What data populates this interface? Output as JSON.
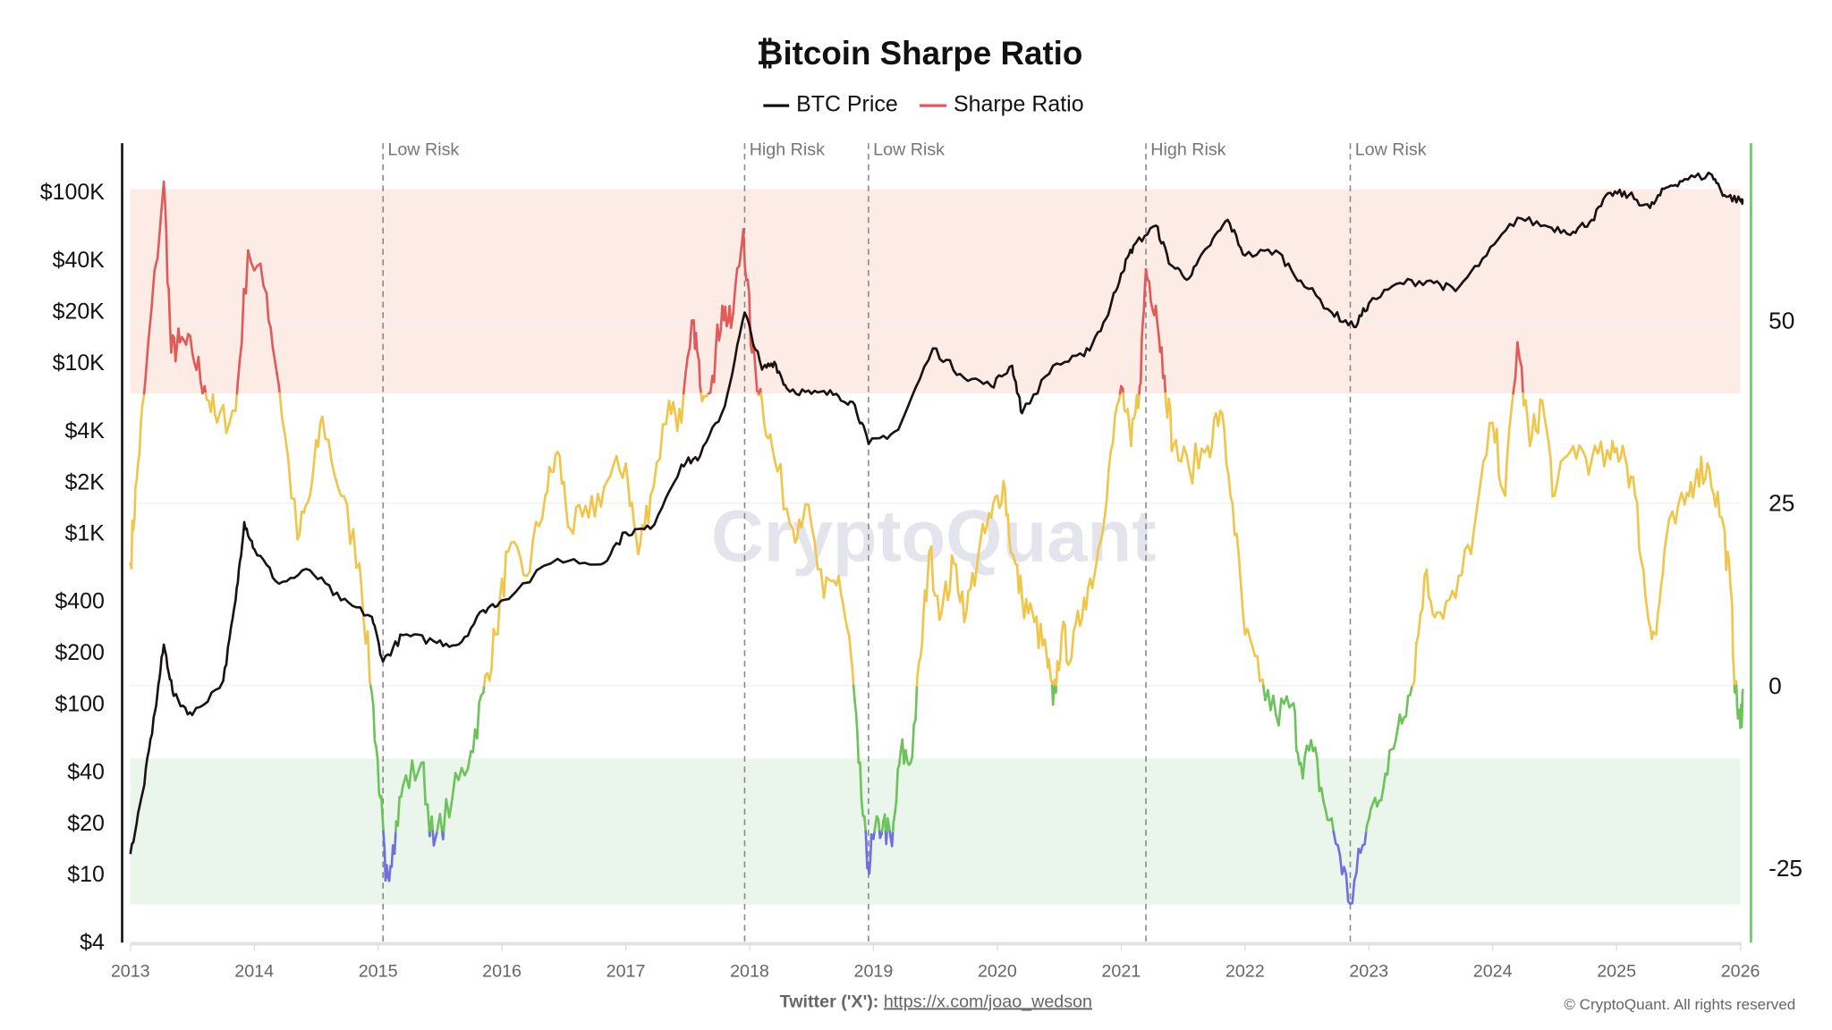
{
  "chart_data": {
    "type": "line",
    "title": "₿itcoin Sharpe Ratio",
    "legend": {
      "placement": "top-center",
      "entries": [
        {
          "name": "BTC Price",
          "color": "#111111"
        },
        {
          "name": "Sharpe Ratio",
          "color": "#e05a5a"
        }
      ]
    },
    "x_axis": {
      "ticks": [
        "2013",
        "2014",
        "2015",
        "2016",
        "2017",
        "2018",
        "2019",
        "2020",
        "2021",
        "2022",
        "2023",
        "2024",
        "2025",
        "2026"
      ],
      "range": [
        2013,
        2026
      ]
    },
    "y_left": {
      "scale": "log",
      "ticks": [
        {
          "label": "$100K",
          "value": 100000
        },
        {
          "label": "$40K",
          "value": 40000
        },
        {
          "label": "$20K",
          "value": 20000
        },
        {
          "label": "$10K",
          "value": 10000
        },
        {
          "label": "$4K",
          "value": 4000
        },
        {
          "label": "$2K",
          "value": 2000
        },
        {
          "label": "$1K",
          "value": 1000
        },
        {
          "label": "$400",
          "value": 400
        },
        {
          "label": "$200",
          "value": 200
        },
        {
          "label": "$100",
          "value": 100
        },
        {
          "label": "$40",
          "value": 40
        },
        {
          "label": "$20",
          "value": 20
        },
        {
          "label": "$10",
          "value": 10
        },
        {
          "label": "$4",
          "value": 4
        }
      ],
      "range": [
        4,
        100000
      ]
    },
    "y_right": {
      "scale": "linear",
      "ticks": [
        "50",
        "25",
        "0",
        "-25"
      ],
      "range": [
        -35,
        75
      ],
      "axis_color": "#6cc36a"
    },
    "bands": [
      {
        "from": 40,
        "to": 68,
        "color": "#fdebe6",
        "meaning": "high"
      },
      {
        "from": -30,
        "to": -10,
        "color": "#eaf5ec",
        "meaning": "low"
      }
    ],
    "sharpe_colors": [
      {
        "above": 40,
        "color": "#e05a5a"
      },
      {
        "above": 0,
        "color": "#f0c64a"
      },
      {
        "above": -20,
        "color": "#6cc35a"
      },
      {
        "above": -999,
        "color": "#6f6fe0"
      }
    ],
    "annotations": [
      {
        "x": 2015.04,
        "label": "Low Risk"
      },
      {
        "x": 2017.96,
        "label": "High Risk"
      },
      {
        "x": 2018.96,
        "label": "Low Risk"
      },
      {
        "x": 2021.2,
        "label": "High Risk"
      },
      {
        "x": 2022.85,
        "label": "Low Risk"
      }
    ],
    "series": [
      {
        "name": "BTC Price",
        "axis": "left",
        "x": [
          2013.0,
          2013.1,
          2013.2,
          2013.27,
          2013.35,
          2013.5,
          2013.75,
          2013.85,
          2013.92,
          2014.0,
          2014.2,
          2014.45,
          2014.7,
          2014.95,
          2015.04,
          2015.2,
          2015.45,
          2015.65,
          2015.85,
          2016.0,
          2016.45,
          2016.8,
          2017.0,
          2017.2,
          2017.45,
          2017.6,
          2017.8,
          2017.96,
          2018.1,
          2018.2,
          2018.3,
          2018.5,
          2018.7,
          2018.85,
          2018.96,
          2019.2,
          2019.48,
          2019.7,
          2019.95,
          2020.12,
          2020.2,
          2020.45,
          2020.7,
          2020.88,
          2021.0,
          2021.1,
          2021.28,
          2021.4,
          2021.55,
          2021.7,
          2021.86,
          2022.0,
          2022.25,
          2022.45,
          2022.7,
          2022.88,
          2023.0,
          2023.25,
          2023.5,
          2023.7,
          2023.95,
          2024.2,
          2024.45,
          2024.65,
          2024.8,
          2024.95,
          2025.1,
          2025.27,
          2025.4,
          2025.55,
          2025.77,
          2025.87,
          2026.0,
          2026.02
        ],
        "y": [
          13,
          30,
          90,
          220,
          110,
          85,
          135,
          400,
          1150,
          800,
          500,
          600,
          400,
          320,
          175,
          250,
          230,
          220,
          350,
          400,
          700,
          650,
          1000,
          1050,
          2500,
          2800,
          5500,
          19500,
          9000,
          10000,
          7000,
          6500,
          6500,
          5600,
          3300,
          4000,
          12000,
          8500,
          7200,
          9500,
          5000,
          9500,
          10800,
          18000,
          33000,
          48000,
          63000,
          37000,
          31000,
          47000,
          68000,
          42000,
          45000,
          30000,
          19500,
          16000,
          22000,
          29000,
          30000,
          26000,
          42000,
          70000,
          62000,
          58000,
          68000,
          98000,
          95000,
          80000,
          105000,
          118000,
          125000,
          95000,
          88000,
          90000
        ]
      },
      {
        "name": "Sharpe Ratio",
        "axis": "right",
        "x": [
          2013.0,
          2013.05,
          2013.12,
          2013.27,
          2013.33,
          2013.4,
          2013.5,
          2013.6,
          2013.7,
          2013.85,
          2013.95,
          2014.1,
          2014.2,
          2014.35,
          2014.45,
          2014.55,
          2014.7,
          2014.85,
          2014.95,
          2015.02,
          2015.06,
          2015.12,
          2015.2,
          2015.35,
          2015.45,
          2015.6,
          2015.75,
          2015.85,
          2015.95,
          2016.05,
          2016.2,
          2016.35,
          2016.45,
          2016.55,
          2016.7,
          2016.85,
          2017.0,
          2017.1,
          2017.2,
          2017.35,
          2017.45,
          2017.55,
          2017.6,
          2017.7,
          2017.78,
          2017.85,
          2017.95,
          2018.02,
          2018.1,
          2018.2,
          2018.35,
          2018.45,
          2018.6,
          2018.72,
          2018.82,
          2018.88,
          2018.95,
          2019.0,
          2019.08,
          2019.15,
          2019.22,
          2019.3,
          2019.38,
          2019.45,
          2019.55,
          2019.65,
          2019.75,
          2019.85,
          2019.95,
          2020.05,
          2020.12,
          2020.2,
          2020.3,
          2020.4,
          2020.45,
          2020.52,
          2020.6,
          2020.7,
          2020.8,
          2020.9,
          2021.0,
          2021.08,
          2021.15,
          2021.2,
          2021.28,
          2021.35,
          2021.42,
          2021.55,
          2021.7,
          2021.8,
          2021.9,
          2022.0,
          2022.12,
          2022.25,
          2022.38,
          2022.45,
          2022.55,
          2022.65,
          2022.75,
          2022.85,
          2022.95,
          2023.05,
          2023.15,
          2023.25,
          2023.35,
          2023.45,
          2023.55,
          2023.7,
          2023.85,
          2024.0,
          2024.1,
          2024.2,
          2024.3,
          2024.4,
          2024.5,
          2024.65,
          2024.8,
          2024.95,
          2025.05,
          2025.15,
          2025.25,
          2025.32,
          2025.4,
          2025.55,
          2025.65,
          2025.75,
          2025.85,
          2025.92,
          2025.96,
          2026.0,
          2026.02
        ],
        "y": [
          16.7,
          28,
          41.6,
          69,
          45.6,
          47,
          45.6,
          41,
          36,
          37.6,
          59.6,
          53.7,
          41,
          20,
          26,
          36.8,
          26,
          16.7,
          -1,
          -15.4,
          -26.7,
          -21.9,
          -13.8,
          -10.6,
          -21.9,
          -15.4,
          -9,
          -1,
          7,
          18.3,
          15,
          26,
          32,
          21.5,
          23,
          28,
          30.4,
          18,
          26,
          39,
          36,
          50,
          41,
          42.4,
          52,
          49,
          62.5,
          45.6,
          39,
          31,
          21.5,
          24.8,
          12,
          15,
          3.9,
          -10.6,
          -25,
          -21,
          -18.6,
          -22,
          -9,
          -10.6,
          3.9,
          18.3,
          10,
          16.7,
          10,
          18.3,
          23,
          28,
          18,
          12,
          8.7,
          3.9,
          -2.6,
          7,
          3.9,
          12,
          16.7,
          29.6,
          41,
          32.8,
          41,
          57,
          52,
          42.4,
          32.8,
          29.6,
          32.8,
          37.6,
          24.8,
          7,
          0.6,
          -4,
          -2.6,
          -10.6,
          -9,
          -17,
          -21.9,
          -29.9,
          -21.9,
          -15.4,
          -12.2,
          -4,
          0,
          15,
          10,
          12,
          21.5,
          36,
          26,
          47,
          32.8,
          39,
          26,
          32.8,
          31,
          31,
          32.8,
          26,
          10,
          7,
          20,
          24.8,
          29.6,
          29.6,
          23,
          13.5,
          -1,
          -5.8,
          -0.6
        ]
      }
    ]
  },
  "watermark": "CryptoQuant",
  "footer": {
    "twitter_label": "Twitter ('X'):",
    "twitter_link": "https://x.com/joao_wedson",
    "copyright": "© CryptoQuant. All rights reserved"
  }
}
